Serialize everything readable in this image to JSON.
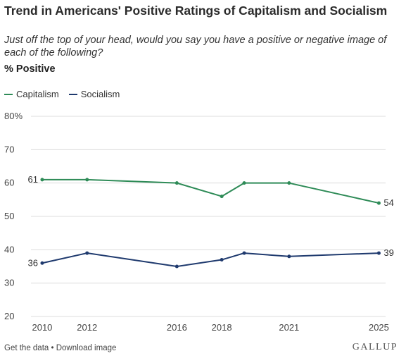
{
  "header": {
    "title": "Trend in Americans' Positive Ratings of Capitalism and Socialism",
    "subtitle": "Just off the top of your head, would you say you have a positive or negative image of each of the following?",
    "metric": "% Positive"
  },
  "legend": [
    {
      "name": "Capitalism",
      "color": "#2e8b57"
    },
    {
      "name": "Socialism",
      "color": "#1f3a6e"
    }
  ],
  "footer": {
    "get_data": "Get the data",
    "separator": " • ",
    "download": "Download image",
    "brand": "GALLUP"
  },
  "chart_data": {
    "type": "line",
    "xlim": [
      2009.5,
      2025.3
    ],
    "ylim": [
      20,
      80
    ],
    "y_ticks": [
      20,
      30,
      40,
      50,
      60,
      70,
      80
    ],
    "y_tick_labels": [
      "20",
      "30",
      "40",
      "50",
      "60",
      "70",
      "80%"
    ],
    "x_ticks": [
      2010,
      2012,
      2016,
      2018,
      2021,
      2025
    ],
    "x_tick_labels": [
      "2010",
      "2012",
      "2016",
      "2018",
      "2021",
      "2025"
    ],
    "grid": true,
    "series": [
      {
        "name": "Capitalism",
        "color": "#2e8b57",
        "x": [
          2010,
          2012,
          2016,
          2018,
          2019,
          2021,
          2025
        ],
        "y": [
          61,
          61,
          60,
          56,
          60,
          60,
          54
        ],
        "labels": {
          "start": "61",
          "end": "54"
        }
      },
      {
        "name": "Socialism",
        "color": "#1f3a6e",
        "x": [
          2010,
          2012,
          2016,
          2018,
          2019,
          2021,
          2025
        ],
        "y": [
          36,
          39,
          35,
          37,
          39,
          38,
          39
        ],
        "labels": {
          "start": "36",
          "end": "39"
        }
      }
    ]
  }
}
